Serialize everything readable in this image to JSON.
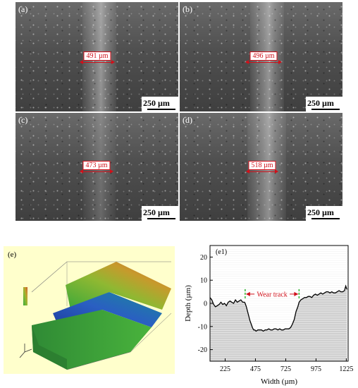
{
  "panels": {
    "a": {
      "label": "(a)",
      "measurement": "491 µm",
      "scale": "250 µm"
    },
    "b": {
      "label": "(b)",
      "measurement": "496 µm",
      "scale": "250 µm"
    },
    "c": {
      "label": "(c)",
      "measurement": "473 µm",
      "scale": "250 µm"
    },
    "d": {
      "label": "(d)",
      "measurement": "518 µm",
      "scale": "250 µm"
    },
    "e": {
      "label": "(e)"
    },
    "e1": {
      "label": "(e1)",
      "annotation": "Wear track"
    }
  },
  "chart_data": {
    "type": "line",
    "xlabel": "Width (µm)",
    "ylabel": "Depth (µm)",
    "xlim": [
      100,
      1240
    ],
    "ylim": [
      -25,
      25
    ],
    "xticks": [
      225,
      475,
      725,
      975,
      1225
    ],
    "yticks": [
      -20,
      -10,
      0,
      10,
      20
    ],
    "annotation": "Wear track",
    "series": [
      {
        "x": [
          100,
          115,
          130,
          145,
          160,
          175,
          190,
          205,
          220,
          235,
          250,
          265,
          280,
          295,
          310,
          325,
          340,
          355,
          370,
          385,
          390,
          400,
          410,
          420,
          430,
          440,
          450,
          460,
          470,
          480,
          495,
          510,
          525,
          540,
          555,
          570,
          585,
          600,
          615,
          630,
          645,
          660,
          675,
          690,
          705,
          720,
          735,
          750,
          765,
          780,
          795,
          810,
          825,
          835,
          850,
          865,
          880,
          895,
          910,
          925,
          940,
          955,
          970,
          985,
          1000,
          1015,
          1030,
          1045,
          1060,
          1075,
          1090,
          1105,
          1120,
          1135,
          1150,
          1165,
          1180,
          1195,
          1210,
          1220,
          1230
        ],
        "y": [
          2.5,
          1.5,
          -0.5,
          -1.5,
          -1,
          -0.5,
          0.5,
          -0.5,
          0,
          -1,
          0.5,
          1,
          0.5,
          0,
          1.5,
          0.5,
          1,
          1.5,
          0.5,
          0.5,
          0,
          -1.5,
          -3.5,
          -5.5,
          -7.5,
          -9,
          -10.5,
          -11.5,
          -11.5,
          -12,
          -11.5,
          -11.5,
          -11.5,
          -12,
          -11.5,
          -11.5,
          -11,
          -11.5,
          -11.5,
          -11,
          -11,
          -11.5,
          -11,
          -11.5,
          -11.5,
          -11,
          -11,
          -11,
          -10.5,
          -9,
          -7,
          -3.5,
          -1.5,
          0.5,
          1.5,
          2,
          2.5,
          2.5,
          3,
          3,
          2.5,
          3.5,
          4,
          3.5,
          4,
          4.5,
          4,
          4.5,
          5,
          5,
          4.5,
          5,
          4.5,
          4.5,
          5,
          5.5,
          5,
          5,
          5.5,
          7.5,
          6
        ]
      }
    ]
  }
}
